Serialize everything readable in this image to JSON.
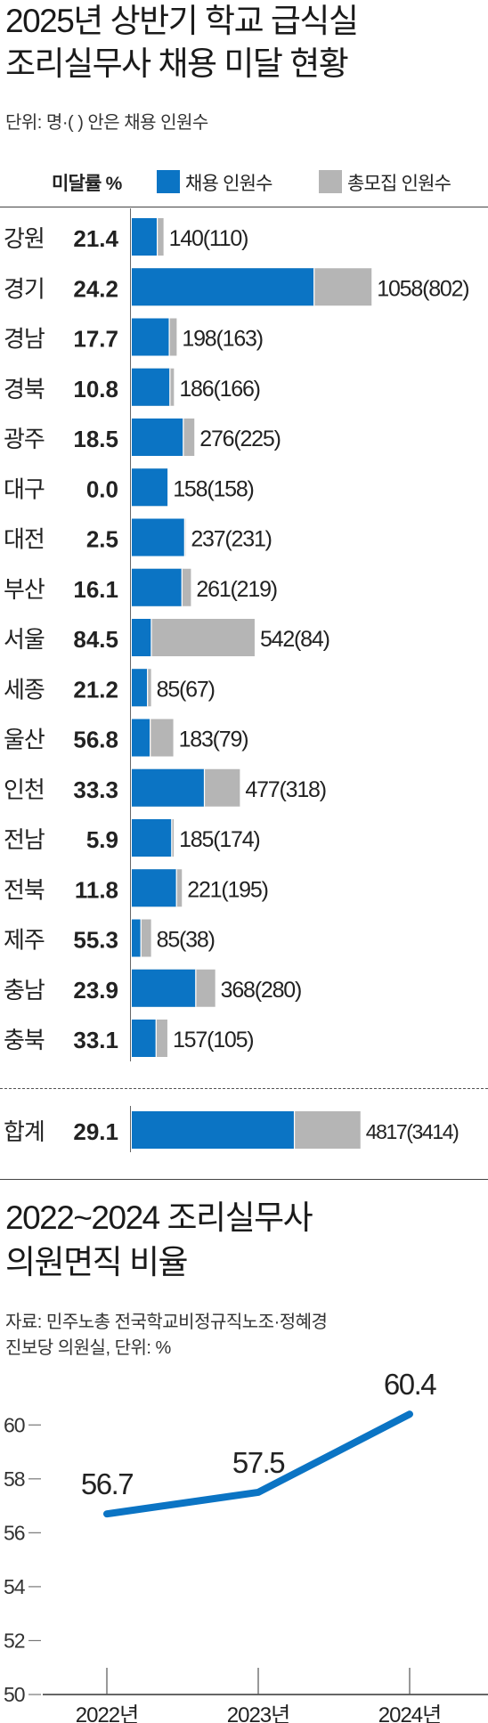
{
  "chart_data": [
    {
      "type": "bar",
      "title": "2025년 상반기 학교 급식실 조리실무사 채용 미달 현황",
      "title_lines": [
        "2025년 상반기 학교 급식실",
        "조리실무사 채용 미달 현황"
      ],
      "subtitle": "단위: 명·( ) 안은 채용 인원수",
      "rate_header": "미달률 %",
      "legend": [
        {
          "name": "채용 인원수",
          "color": "#0b74c4"
        },
        {
          "name": "총모집 인원수",
          "color": "#b5b5b5"
        }
      ],
      "legend_placement": "top-right",
      "categories": [
        "강원",
        "경기",
        "경남",
        "경북",
        "광주",
        "대구",
        "대전",
        "부산",
        "서울",
        "세종",
        "울산",
        "인천",
        "전남",
        "전북",
        "제주",
        "충남",
        "충북"
      ],
      "series": [
        {
          "name": "총모집 인원수",
          "values": [
            140,
            1058,
            198,
            186,
            276,
            158,
            237,
            261,
            542,
            85,
            183,
            477,
            185,
            221,
            85,
            368,
            157
          ]
        },
        {
          "name": "채용 인원수",
          "values": [
            110,
            802,
            163,
            166,
            225,
            158,
            231,
            219,
            84,
            67,
            79,
            318,
            174,
            195,
            38,
            280,
            105
          ]
        }
      ],
      "shortfall_rate": [
        "21.4",
        "24.2",
        "17.7",
        "10.8",
        "18.5",
        "0.0",
        "2.5",
        "16.1",
        "84.5",
        "21.2",
        "56.8",
        "33.3",
        "5.9",
        "11.8",
        "55.3",
        "23.9",
        "33.1"
      ],
      "value_labels": [
        "140(110)",
        "1058(802)",
        "198(163)",
        "186(166)",
        "276(225)",
        "158(158)",
        "237(231)",
        "261(219)",
        "542(84)",
        "85(67)",
        "183(79)",
        "477(318)",
        "185(174)",
        "221(195)",
        "85(38)",
        "368(280)",
        "157(105)"
      ],
      "total": {
        "label": "합계",
        "rate": "29.1",
        "recruit": 4817,
        "hired": 3414,
        "value_label": "4817(3414)"
      }
    },
    {
      "type": "line",
      "title": "2022~2024 조리실무사 의원면직 비율",
      "title_lines": [
        "2022~2024 조리실무사",
        "의원면직 비율"
      ],
      "source_lines": [
        "자료: 민주노총 전국학교비정규직노조·정혜경",
        "진보당 의원실, 단위: %"
      ],
      "categories": [
        "2022년",
        "2023년",
        "2024년"
      ],
      "values": [
        56.7,
        57.5,
        60.4
      ],
      "value_labels": [
        "56.7",
        "57.5",
        "60.4"
      ],
      "ylim": [
        50,
        61
      ],
      "yticks": [
        "50",
        "52",
        "54",
        "56",
        "58",
        "60"
      ],
      "grid": false,
      "line_color": "#0b74c4"
    }
  ]
}
